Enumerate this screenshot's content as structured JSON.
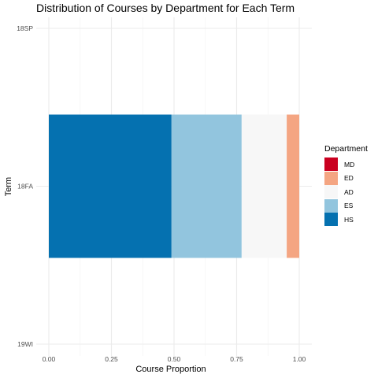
{
  "chart_data": {
    "type": "bar",
    "orientation": "horizontal",
    "stacked": true,
    "title": "Distribution of Courses by Department for Each Term",
    "xlabel": "Course Proportion",
    "ylabel": "Term",
    "xlim": [
      0,
      1
    ],
    "x_ticks": [
      "0.00",
      "0.25",
      "0.50",
      "0.75",
      "1.00"
    ],
    "categories": [
      "18SP",
      "18FA",
      "19WI"
    ],
    "grid": true,
    "legend": {
      "title": "Department",
      "position": "right"
    },
    "series": [
      {
        "name": "MD",
        "color": "#ca0020",
        "values": [
          0,
          0,
          0
        ]
      },
      {
        "name": "ED",
        "color": "#f4a582",
        "values": [
          0,
          0.05,
          0
        ]
      },
      {
        "name": "AD",
        "color": "#f7f7f7",
        "values": [
          0,
          0.18,
          0
        ]
      },
      {
        "name": "ES",
        "color": "#92c5de",
        "values": [
          0,
          0.28,
          0
        ]
      },
      {
        "name": "HS",
        "color": "#0571b0",
        "values": [
          0,
          0.49,
          0
        ]
      }
    ]
  }
}
